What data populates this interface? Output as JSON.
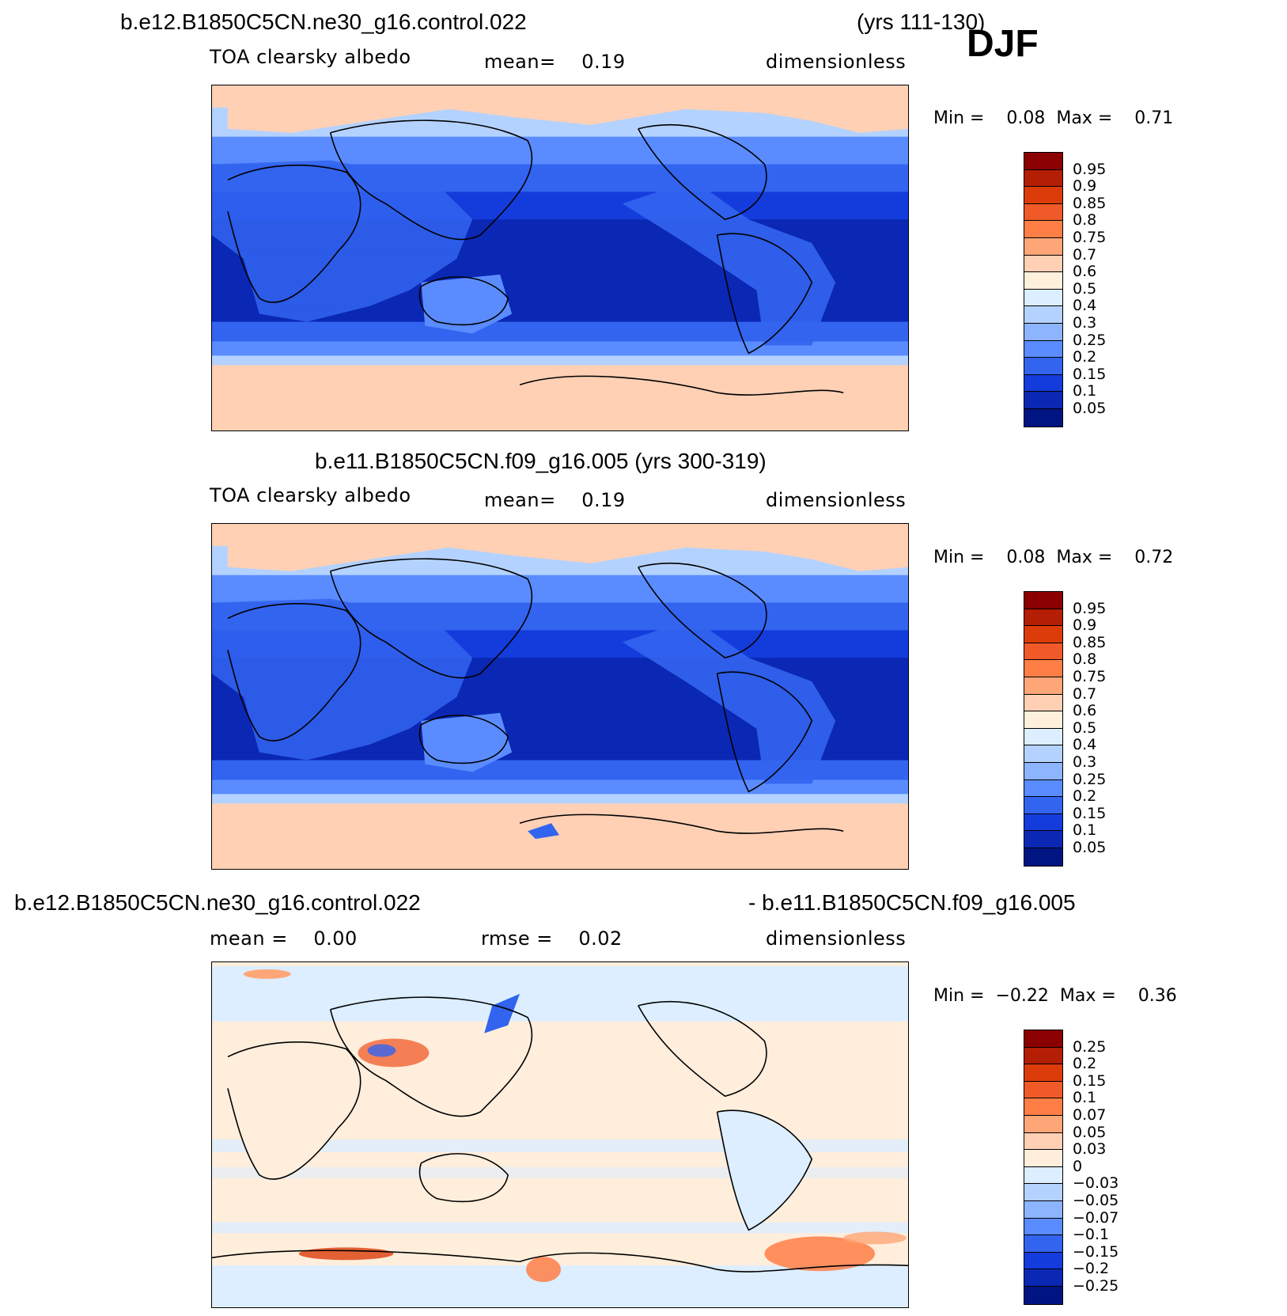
{
  "season": "DJF",
  "panels": [
    {
      "title_left": "b.e12.B1850C5CN.ne30_g16.control.022",
      "title_right": "(yrs 111-130)",
      "sub_left": "TOA clearsky albedo",
      "sub_mid": "mean=    0.19",
      "sub_right": "dimensionless",
      "min_max": "Min =    0.08  Max =    0.71",
      "colorbar": {
        "colors": [
          "#8b0000",
          "#b41e05",
          "#dc3c0a",
          "#f05a28",
          "#ff7e46",
          "#ffa678",
          "#ffd0b4",
          "#fff0dc",
          "#dceeff",
          "#b4d2ff",
          "#8cb4ff",
          "#5a8cff",
          "#3264f0",
          "#143cdc",
          "#0a28b4",
          "#001482"
        ],
        "labels": [
          "0.95",
          "0.9",
          "0.85",
          "0.8",
          "0.75",
          "0.7",
          "0.6",
          "0.5",
          "0.4",
          "0.3",
          "0.25",
          "0.2",
          "0.15",
          "0.1",
          "0.05"
        ]
      }
    },
    {
      "title_left": "b.e11.B1850C5CN.f09_g16.005 (yrs 300-319)",
      "sub_left": "TOA clearsky albedo",
      "sub_mid": "mean=    0.19",
      "sub_right": "dimensionless",
      "min_max": "Min =    0.08  Max =    0.72",
      "colorbar": {
        "colors": [
          "#8b0000",
          "#b41e05",
          "#dc3c0a",
          "#f05a28",
          "#ff7e46",
          "#ffa678",
          "#ffd0b4",
          "#fff0dc",
          "#dceeff",
          "#b4d2ff",
          "#8cb4ff",
          "#5a8cff",
          "#3264f0",
          "#143cdc",
          "#0a28b4",
          "#001482"
        ],
        "labels": [
          "0.95",
          "0.9",
          "0.85",
          "0.8",
          "0.75",
          "0.7",
          "0.6",
          "0.5",
          "0.4",
          "0.3",
          "0.25",
          "0.2",
          "0.15",
          "0.1",
          "0.05"
        ]
      }
    },
    {
      "title_left": "b.e12.B1850C5CN.ne30_g16.control.022",
      "title_right": "- b.e11.B1850C5CN.f09_g16.005",
      "sub_left": "mean =    0.00",
      "sub_mid": "rmse =    0.02",
      "sub_right": "dimensionless",
      "min_max": "Min =  −0.22  Max =    0.36",
      "colorbar": {
        "colors": [
          "#8b0000",
          "#b41e05",
          "#dc3c0a",
          "#f05a28",
          "#ff7e46",
          "#ffa678",
          "#ffd0b4",
          "#ffeedc",
          "#dceeff",
          "#b4d2ff",
          "#8cb4ff",
          "#5a8cff",
          "#3264f0",
          "#143cdc",
          "#0a28b4",
          "#001482"
        ],
        "labels": [
          "0.25",
          "0.2",
          "0.15",
          "0.1",
          "0.07",
          "0.05",
          "0.03",
          "0",
          "−0.03",
          "−0.05",
          "−0.07",
          "−0.1",
          "−0.15",
          "−0.2",
          "−0.25"
        ]
      }
    }
  ]
}
